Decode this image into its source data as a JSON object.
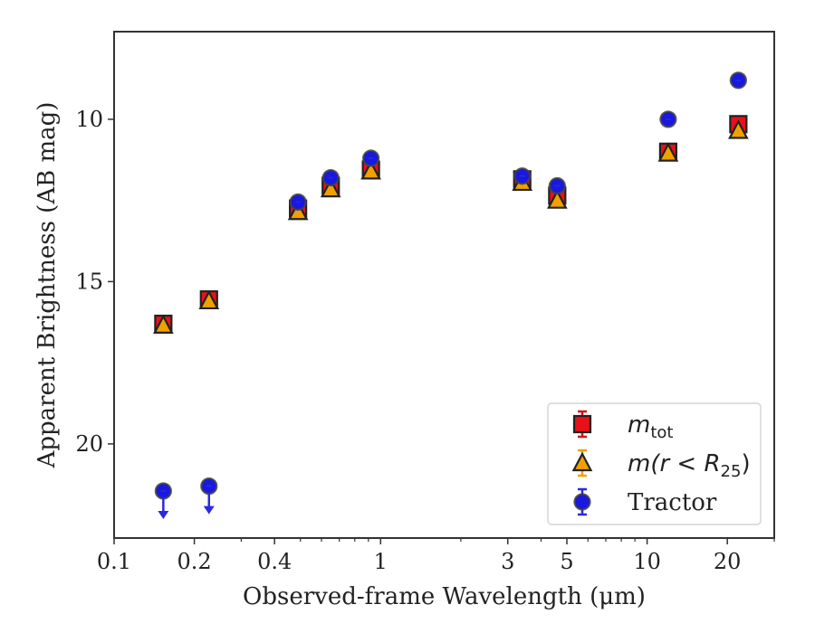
{
  "chart_data": {
    "type": "scatter",
    "xlabel": "Observed-frame Wavelength (μm)",
    "ylabel": "Apparent Brightness (AB mag)",
    "xscale": "log",
    "xlim": [
      0.1,
      30
    ],
    "ylim": [
      22.9,
      7.3
    ],
    "y_inverted": true,
    "grid": false,
    "legend_position": "lower-right",
    "x_ticks": [
      {
        "value": 0.1,
        "label": "0.1"
      },
      {
        "value": 0.2,
        "label": "0.2"
      },
      {
        "value": 0.4,
        "label": "0.4"
      },
      {
        "value": 1,
        "label": "1"
      },
      {
        "value": 3,
        "label": "3"
      },
      {
        "value": 5,
        "label": "5"
      },
      {
        "value": 10,
        "label": "10"
      },
      {
        "value": 20,
        "label": "20"
      }
    ],
    "y_ticks": [
      {
        "value": 10,
        "label": "10"
      },
      {
        "value": 15,
        "label": "15"
      },
      {
        "value": 20,
        "label": "20"
      }
    ],
    "series": [
      {
        "name": "m_tot",
        "legend_label": {
          "base": "m",
          "sub": "tot"
        },
        "marker": "square",
        "color": "#e8101a",
        "errorbar_color": "#d11515",
        "x": [
          0.153,
          0.227,
          0.49,
          0.65,
          0.92,
          3.4,
          4.6,
          12.0,
          22.0
        ],
        "y": [
          16.3,
          15.55,
          12.75,
          12.05,
          11.55,
          11.85,
          12.35,
          11.0,
          10.15
        ]
      },
      {
        "name": "m(r<R25)",
        "legend_label": {
          "base": "m(r < R",
          "sub": "25",
          "tail": ")"
        },
        "marker": "triangle",
        "color": "#f0a000",
        "errorbar_color": "#f0a000",
        "x": [
          0.153,
          0.227,
          0.49,
          0.65,
          0.92,
          3.4,
          4.6,
          12.0,
          22.0
        ],
        "y": [
          16.35,
          15.6,
          12.85,
          12.15,
          11.6,
          11.95,
          12.5,
          11.05,
          10.35
        ]
      },
      {
        "name": "Tractor",
        "legend_label": {
          "base": "Tractor"
        },
        "marker": "circle",
        "color": "#1818e0",
        "errorbar_color": "#2a2ae0",
        "x": [
          0.153,
          0.227,
          0.49,
          0.65,
          0.92,
          3.4,
          4.6,
          12.0,
          22.0
        ],
        "y": [
          21.45,
          21.3,
          12.55,
          11.8,
          11.2,
          11.75,
          12.05,
          10.0,
          8.8
        ],
        "upper_limit": [
          true,
          true,
          false,
          false,
          false,
          false,
          false,
          false,
          false
        ]
      }
    ]
  }
}
